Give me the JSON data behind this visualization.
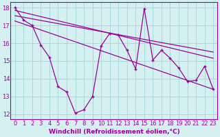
{
  "xlabel": "Windchill (Refroidissement éolien,°C)",
  "background_color": "#d4f0f0",
  "grid_color": "#a8d8d8",
  "line_color": "#990099",
  "xlim": [
    -0.5,
    23.5
  ],
  "ylim": [
    11.7,
    18.3
  ],
  "xticks": [
    0,
    1,
    2,
    3,
    4,
    5,
    6,
    7,
    8,
    9,
    10,
    11,
    12,
    13,
    14,
    15,
    16,
    17,
    18,
    19,
    20,
    21,
    22,
    23
  ],
  "yticks": [
    12,
    13,
    14,
    15,
    16,
    17,
    18
  ],
  "series1_x": [
    0,
    1,
    2,
    3,
    4,
    5,
    6,
    7,
    8,
    9,
    10,
    11,
    12,
    13,
    14,
    15,
    16,
    17,
    18,
    19,
    20,
    21,
    22,
    23
  ],
  "series1_y": [
    18.0,
    17.3,
    17.0,
    15.9,
    15.2,
    13.55,
    13.25,
    12.05,
    12.25,
    13.0,
    15.85,
    16.55,
    16.45,
    15.6,
    14.55,
    17.95,
    15.05,
    15.6,
    15.15,
    14.6,
    13.85,
    13.9,
    14.7,
    13.4
  ],
  "series2_x": [
    0,
    23
  ],
  "series2_y": [
    17.85,
    15.15
  ],
  "series3_x": [
    0,
    23
  ],
  "series3_y": [
    17.55,
    15.5
  ],
  "series4_x": [
    0,
    23
  ],
  "series4_y": [
    17.25,
    13.4
  ],
  "font_size_label": 6.5,
  "font_size_tick": 6.0
}
